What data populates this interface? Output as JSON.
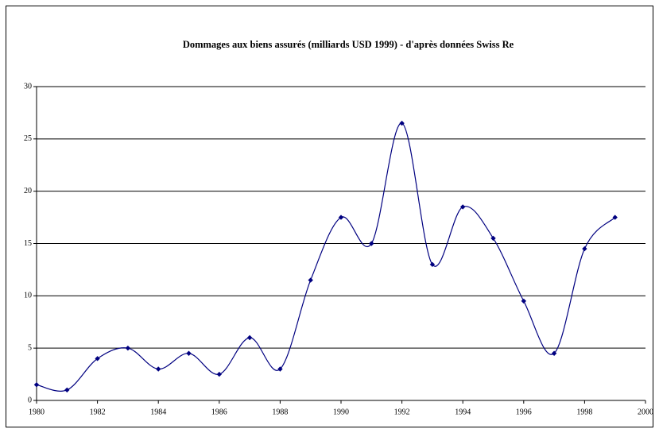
{
  "chart_data": {
    "type": "line",
    "title": "Dommages aux biens assurés (milliards USD 1999) - d'après données Swiss Re",
    "x": [
      1980,
      1981,
      1982,
      1983,
      1984,
      1985,
      1986,
      1987,
      1988,
      1989,
      1990,
      1991,
      1992,
      1993,
      1994,
      1995,
      1996,
      1997,
      1998,
      1999
    ],
    "series": [
      {
        "name": "Dommages",
        "color": "#000080",
        "values": [
          1.5,
          1,
          4,
          5,
          3,
          4.5,
          2.5,
          6,
          3,
          11.5,
          17.5,
          15,
          26.5,
          13,
          18.5,
          15.5,
          9.5,
          4.5,
          14.5,
          17.5
        ]
      }
    ],
    "xlim": [
      1980,
      2000
    ],
    "xticks": [
      1980,
      1982,
      1984,
      1986,
      1988,
      1990,
      1992,
      1994,
      1996,
      1998,
      2000
    ],
    "ylim": [
      0,
      30
    ],
    "yticks": [
      0,
      5,
      10,
      15,
      20,
      25,
      30
    ],
    "grid": true,
    "smooth": true,
    "legend": false
  }
}
